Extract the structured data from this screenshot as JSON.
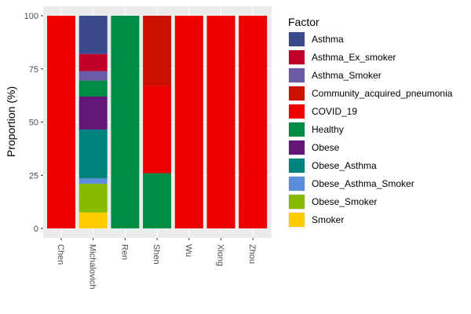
{
  "chart_data": {
    "type": "bar",
    "stacked": true,
    "title": "",
    "xlabel": "",
    "ylabel": "Proportion (%)",
    "ylim": [
      0,
      100
    ],
    "yticks": [
      0,
      25,
      50,
      75,
      100
    ],
    "grid": true,
    "legend_title": "Factor",
    "legend_position": "right",
    "categories": [
      "Chen",
      "Michalovich",
      "Ren",
      "Shen",
      "Wu",
      "Xiong",
      "Zhou"
    ],
    "series": [
      {
        "name": "Asthma",
        "color": "#3A4A8C",
        "values": [
          0,
          18,
          0,
          0,
          0,
          0,
          0
        ]
      },
      {
        "name": "Asthma_Ex_smoker",
        "color": "#C00028",
        "values": [
          0,
          8,
          0,
          0,
          0,
          0,
          0
        ]
      },
      {
        "name": "Asthma_Smoker",
        "color": "#6B5AA6",
        "values": [
          0,
          4.5,
          0,
          0,
          0,
          0,
          0
        ]
      },
      {
        "name": "Community_acquired_pneumonia",
        "color": "#CC1100",
        "values": [
          0,
          0,
          0,
          33,
          0,
          0,
          0
        ]
      },
      {
        "name": "COVID_19",
        "color": "#EE0000",
        "values": [
          100,
          0,
          0,
          41,
          100,
          100,
          100
        ]
      },
      {
        "name": "Healthy",
        "color": "#008B45",
        "values": [
          0,
          7.5,
          100,
          26,
          0,
          0,
          0
        ]
      },
      {
        "name": "Obese",
        "color": "#631879",
        "values": [
          0,
          15.5,
          0,
          0,
          0,
          0,
          0
        ]
      },
      {
        "name": "Obese_Asthma",
        "color": "#008280",
        "values": [
          0,
          23,
          0,
          0,
          0,
          0,
          0
        ]
      },
      {
        "name": "Obese_Asthma_Smoker",
        "color": "#5B8FDD",
        "values": [
          0,
          2.5,
          0,
          0,
          0,
          0,
          0
        ]
      },
      {
        "name": "Obese_Smoker",
        "color": "#88BB00",
        "values": [
          0,
          13.5,
          0,
          0,
          0,
          0,
          0
        ]
      },
      {
        "name": "Smoker",
        "color": "#FFCC00",
        "values": [
          0,
          7.5,
          0,
          0,
          0,
          0,
          0
        ]
      }
    ]
  },
  "colors": {
    "panel_background": "#EBEBEB",
    "grid_major": "#FFFFFF",
    "grid_minor": "#F5F5F5"
  }
}
